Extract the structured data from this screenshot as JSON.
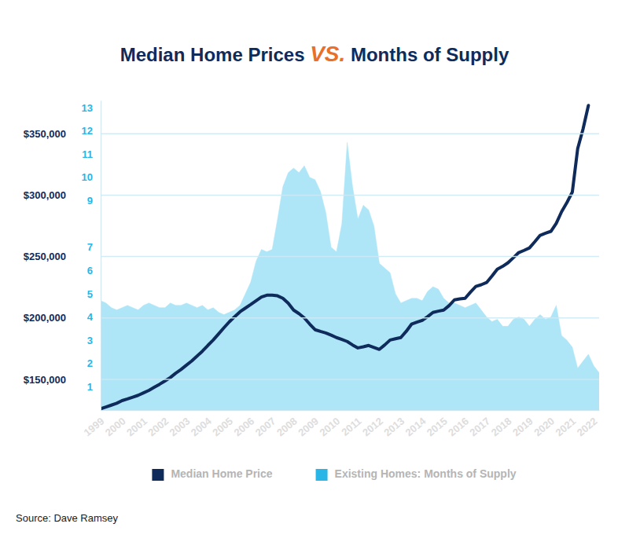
{
  "chart_data": {
    "type": "line",
    "title": "Median Home Prices VS. Months of Supply",
    "x": [
      1999,
      1999.25,
      1999.5,
      1999.75,
      2000,
      2000.25,
      2000.5,
      2000.75,
      2001,
      2001.25,
      2001.5,
      2001.75,
      2002,
      2002.25,
      2002.5,
      2002.75,
      2003,
      2003.25,
      2003.5,
      2003.75,
      2004,
      2004.25,
      2004.5,
      2004.75,
      2005,
      2005.25,
      2005.5,
      2005.75,
      2006,
      2006.25,
      2006.5,
      2006.75,
      2007,
      2007.25,
      2007.5,
      2007.75,
      2008,
      2008.25,
      2008.5,
      2008.75,
      2009,
      2009.25,
      2009.5,
      2009.75,
      2010,
      2010.25,
      2010.5,
      2010.75,
      2011,
      2011.25,
      2011.5,
      2011.75,
      2012,
      2012.25,
      2012.5,
      2012.75,
      2013,
      2013.25,
      2013.5,
      2013.75,
      2014,
      2014.25,
      2014.5,
      2014.75,
      2015,
      2015.25,
      2015.5,
      2015.75,
      2016,
      2016.25,
      2016.5,
      2016.75,
      2017,
      2017.25,
      2017.5,
      2017.75,
      2018,
      2018.25,
      2018.5,
      2018.75,
      2019,
      2019.25,
      2019.5,
      2019.75,
      2020,
      2020.25,
      2020.5,
      2020.75,
      2021,
      2021.25,
      2021.5,
      2021.75,
      2022,
      2022.25
    ],
    "series": [
      {
        "name": "Median Home Price",
        "type": "line",
        "color": "#0f2b5b",
        "values": [
          126000,
          127500,
          129000,
          130500,
          132700,
          134000,
          135500,
          137000,
          139000,
          141000,
          143500,
          146000,
          148700,
          151500,
          155000,
          158000,
          161500,
          165000,
          169000,
          173000,
          177600,
          182000,
          187000,
          192000,
          196800,
          201000,
          205000,
          208000,
          210900,
          214000,
          217000,
          218500,
          218600,
          218000,
          216000,
          212000,
          206400,
          203500,
          200000,
          195000,
          190400,
          189000,
          187800,
          186000,
          184000,
          182500,
          180800,
          178000,
          175600,
          176500,
          177600,
          176000,
          174400,
          178000,
          182000,
          183000,
          184000,
          189000,
          194900,
          196500,
          198000,
          201000,
          204500,
          205500,
          206400,
          210000,
          214700,
          215500,
          216000,
          221000,
          225600,
          227000,
          228800,
          234000,
          239700,
          242000,
          244900,
          249000,
          253200,
          255000,
          257000,
          262000,
          267300,
          269000,
          270500,
          277000,
          286500,
          294000,
          302500,
          337800,
          353800,
          373000,
          null,
          null
        ]
      },
      {
        "name": "Existing Homes: Months of Supply",
        "type": "area",
        "axis": "y2",
        "color": "#aee6f8",
        "values": [
          4.7,
          4.6,
          4.4,
          4.3,
          4.4,
          4.5,
          4.4,
          4.3,
          4.5,
          4.6,
          4.5,
          4.4,
          4.4,
          4.6,
          4.5,
          4.5,
          4.6,
          4.5,
          4.4,
          4.5,
          4.3,
          4.4,
          4.2,
          4.1,
          4.2,
          4.3,
          4.5,
          5.0,
          5.5,
          6.4,
          6.9,
          6.8,
          6.9,
          8.2,
          9.6,
          10.2,
          10.4,
          10.2,
          10.5,
          10.0,
          9.9,
          9.4,
          8.5,
          7.0,
          6.8,
          8.0,
          11.5,
          9.6,
          8.2,
          8.8,
          8.6,
          7.9,
          6.3,
          6.1,
          5.9,
          5.0,
          4.6,
          4.7,
          4.8,
          4.8,
          4.7,
          5.1,
          5.3,
          5.2,
          4.8,
          4.6,
          4.6,
          4.5,
          4.4,
          4.5,
          4.6,
          4.3,
          4.0,
          3.8,
          3.9,
          3.6,
          3.6,
          3.9,
          4.0,
          3.9,
          3.6,
          3.9,
          4.1,
          3.9,
          4.0,
          4.5,
          3.2,
          3.0,
          2.7,
          1.8,
          2.1,
          2.4,
          1.9,
          1.6
        ]
      }
    ],
    "xlim": [
      1999,
      2022.25
    ],
    "xticks": [
      1999,
      2000,
      2001,
      2002,
      2003,
      2004,
      2005,
      2006,
      2007,
      2008,
      2009,
      2010,
      2011,
      2012,
      2013,
      2014,
      2015,
      2016,
      2017,
      2018,
      2019,
      2020,
      2021,
      2022
    ],
    "ylim": [
      125000,
      377000
    ],
    "yticks": [
      {
        "value": 150000,
        "label": "$150,000"
      },
      {
        "value": 200000,
        "label": "$200,000"
      },
      {
        "value": 250000,
        "label": "$250,000"
      },
      {
        "value": 300000,
        "label": "$300,000"
      },
      {
        "value": 350000,
        "label": "$350,000"
      }
    ],
    "y2lim": [
      0,
      13.3
    ],
    "y2ticks": [
      1,
      2,
      3,
      4,
      5,
      6,
      7,
      9,
      10,
      11,
      12,
      13
    ],
    "grid": true,
    "legend": "bottom",
    "annotations": [
      "Source: Dave Ramsey"
    ]
  }
}
